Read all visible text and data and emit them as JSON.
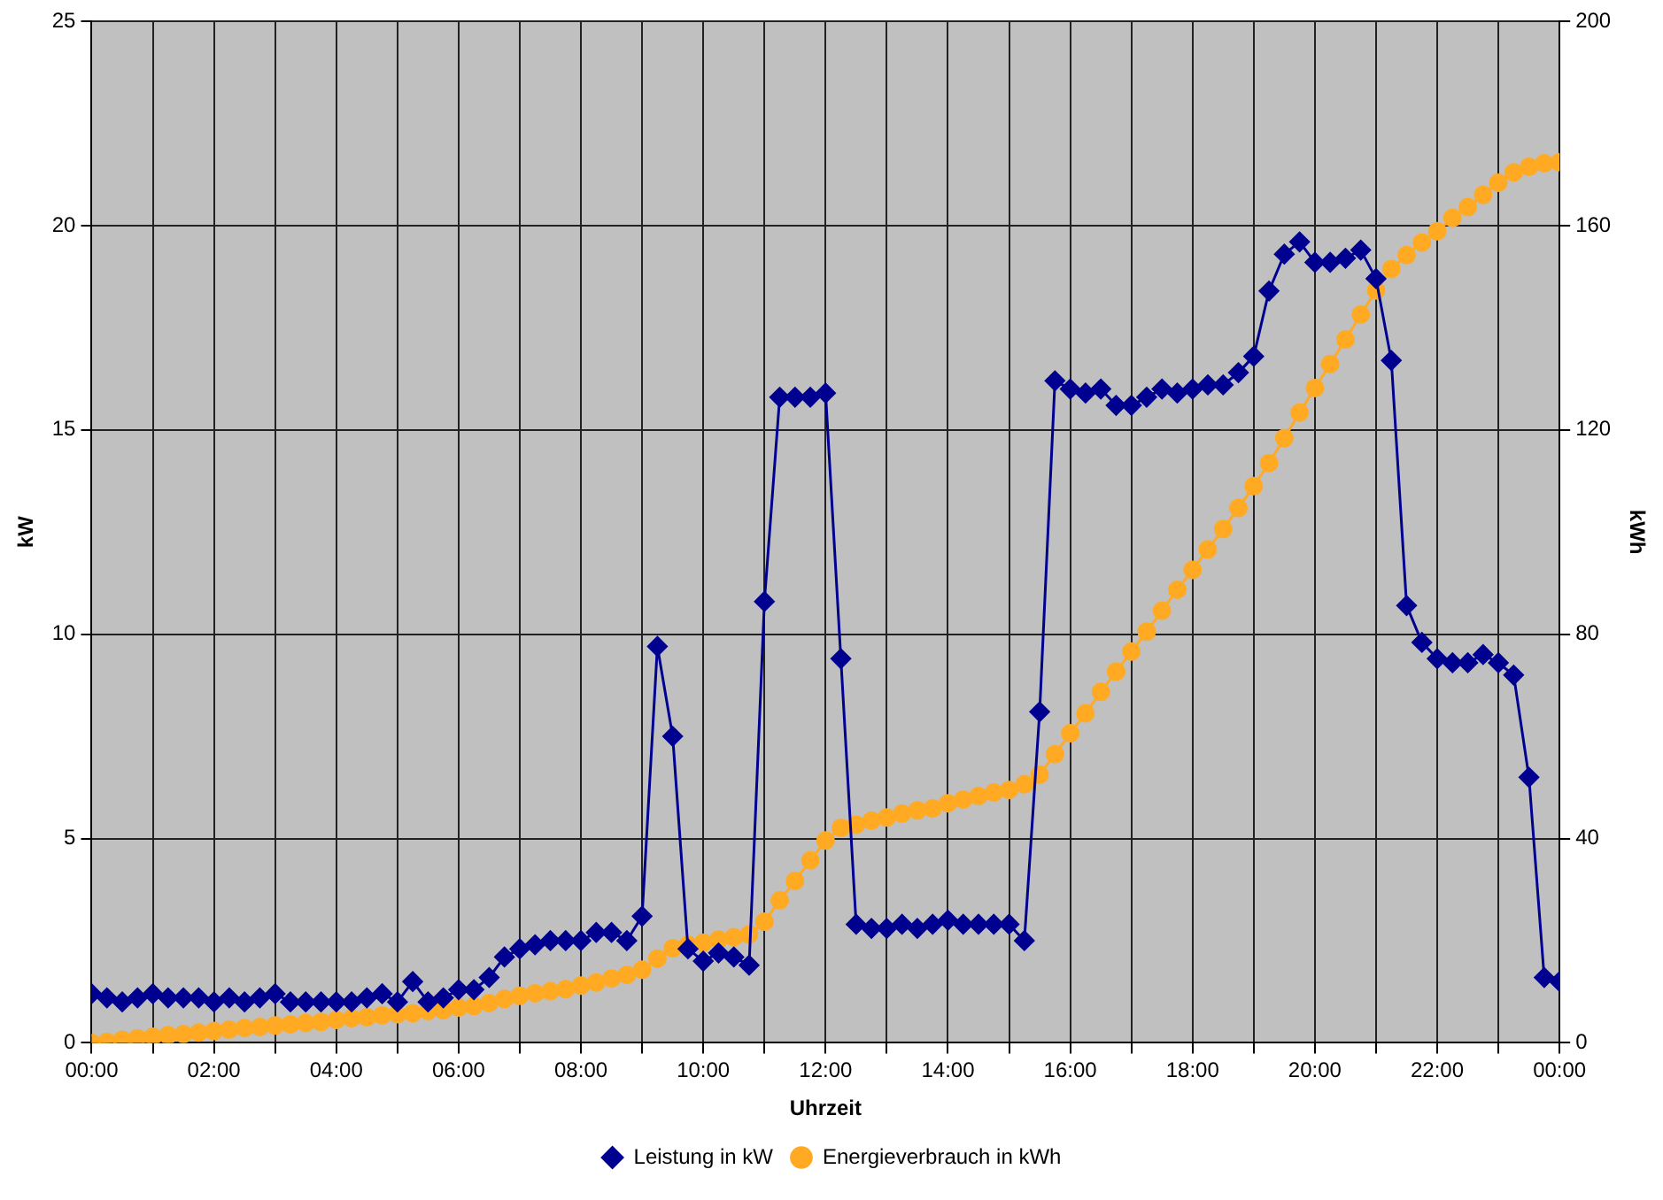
{
  "chart_data": {
    "type": "line",
    "xlabel": "Uhrzeit",
    "ylabel": "kW",
    "y2label": "kWh",
    "x": [
      0,
      0.25,
      0.5,
      0.75,
      1,
      1.25,
      1.5,
      1.75,
      2,
      2.25,
      2.5,
      2.75,
      3,
      3.25,
      3.5,
      3.75,
      4,
      4.25,
      4.5,
      4.75,
      5,
      5.25,
      5.5,
      5.75,
      6,
      6.25,
      6.5,
      6.75,
      7,
      7.25,
      7.5,
      7.75,
      8,
      8.25,
      8.5,
      8.75,
      9,
      9.25,
      9.5,
      9.75,
      10,
      10.25,
      10.5,
      10.75,
      11,
      11.25,
      11.5,
      11.75,
      12,
      12.25,
      12.5,
      12.75,
      13,
      13.25,
      13.5,
      13.75,
      14,
      14.25,
      14.5,
      14.75,
      15,
      15.25,
      15.5,
      15.75,
      16,
      16.25,
      16.5,
      16.75,
      17,
      17.25,
      17.5,
      17.75,
      18,
      18.25,
      18.5,
      18.75,
      19,
      19.25,
      19.5,
      19.75,
      20,
      20.25,
      20.5,
      20.75,
      21,
      21.25,
      21.5,
      21.75,
      22,
      22.25,
      22.5,
      22.75,
      23,
      23.25,
      23.5,
      23.75,
      24
    ],
    "series": [
      {
        "name": "Leistung in kW",
        "color": "#000090",
        "marker": "diamond",
        "values": [
          1.2,
          1.1,
          1.0,
          1.1,
          1.2,
          1.1,
          1.1,
          1.1,
          1.0,
          1.1,
          1.0,
          1.1,
          1.2,
          1.0,
          1.0,
          1.0,
          1.0,
          1.0,
          1.1,
          1.2,
          1.0,
          1.5,
          1.0,
          1.1,
          1.3,
          1.3,
          1.6,
          2.1,
          2.3,
          2.4,
          2.5,
          2.5,
          2.5,
          2.7,
          2.7,
          2.5,
          3.1,
          9.7,
          7.5,
          2.3,
          2.0,
          2.2,
          2.1,
          1.9,
          10.8,
          15.8,
          15.8,
          15.8,
          15.9,
          9.4,
          2.9,
          2.8,
          2.8,
          2.9,
          2.8,
          2.9,
          3.0,
          2.9,
          2.9,
          2.9,
          2.9,
          2.5,
          8.1,
          16.2,
          16.0,
          15.9,
          16.0,
          15.6,
          15.6,
          15.8,
          16.0,
          15.9,
          16.0,
          16.1,
          16.1,
          16.4,
          16.8,
          18.4,
          19.3,
          19.6,
          19.1,
          19.1,
          19.2,
          19.4,
          18.7,
          16.7,
          10.7,
          9.8,
          9.4,
          9.3,
          9.3,
          9.5,
          9.3,
          9.0,
          6.5,
          1.6,
          1.5
        ]
      },
      {
        "name": "Energieverbrauch in kWh",
        "color": "#ffaa22",
        "marker": "circle",
        "axis": "y2",
        "values": [
          0,
          0.2,
          0.6,
          0.9,
          1.2,
          1.5,
          1.7,
          2.0,
          2.3,
          2.6,
          2.9,
          3.1,
          3.4,
          3.6,
          3.9,
          4.1,
          4.5,
          4.8,
          5.0,
          5.4,
          5.6,
          5.8,
          6.2,
          6.4,
          6.9,
          7.2,
          7.8,
          8.6,
          9.2,
          9.7,
          10.1,
          10.5,
          11.2,
          11.8,
          12.6,
          13.3,
          14.3,
          16.5,
          18.5,
          19.2,
          19.6,
          20.2,
          20.7,
          21.2,
          23.7,
          27.9,
          31.7,
          35.7,
          39.6,
          42.1,
          42.7,
          43.5,
          44.1,
          44.9,
          45.5,
          45.9,
          46.9,
          47.6,
          48.3,
          49.0,
          49.5,
          50.6,
          52.5,
          56.5,
          60.6,
          64.5,
          68.7,
          72.7,
          76.6,
          80.5,
          84.6,
          88.7,
          92.6,
          96.6,
          100.6,
          104.7,
          109.0,
          113.5,
          118.4,
          123.4,
          128.2,
          132.9,
          137.7,
          142.6,
          147.3,
          151.5,
          154.2,
          156.7,
          158.9,
          161.5,
          163.6,
          166.0,
          168.4,
          170.4,
          171.5,
          172.2,
          172.4
        ]
      }
    ],
    "xlim": [
      0,
      24
    ],
    "xticks": [
      {
        "value": 0,
        "label": "00:00"
      },
      {
        "value": 1,
        "label": null
      },
      {
        "value": 2,
        "label": "02:00"
      },
      {
        "value": 3,
        "label": null
      },
      {
        "value": 4,
        "label": "04:00"
      },
      {
        "value": 5,
        "label": null
      },
      {
        "value": 6,
        "label": "06:00"
      },
      {
        "value": 7,
        "label": null
      },
      {
        "value": 8,
        "label": "08:00"
      },
      {
        "value": 9,
        "label": null
      },
      {
        "value": 10,
        "label": "10:00"
      },
      {
        "value": 11,
        "label": null
      },
      {
        "value": 12,
        "label": "12:00"
      },
      {
        "value": 13,
        "label": null
      },
      {
        "value": 14,
        "label": "14:00"
      },
      {
        "value": 15,
        "label": null
      },
      {
        "value": 16,
        "label": "16:00"
      },
      {
        "value": 17,
        "label": null
      },
      {
        "value": 18,
        "label": "18:00"
      },
      {
        "value": 19,
        "label": null
      },
      {
        "value": 20,
        "label": "20:00"
      },
      {
        "value": 21,
        "label": null
      },
      {
        "value": 22,
        "label": "22:00"
      },
      {
        "value": 23,
        "label": null
      },
      {
        "value": 24,
        "label": "00:00"
      }
    ],
    "ylim": [
      0,
      25
    ],
    "yticks": [
      0,
      5,
      10,
      15,
      20,
      25
    ],
    "y2lim": [
      0,
      200
    ],
    "y2ticks": [
      0,
      40,
      80,
      120,
      160,
      200
    ],
    "grid": true,
    "legend": "bottom",
    "line_style": "solid"
  }
}
